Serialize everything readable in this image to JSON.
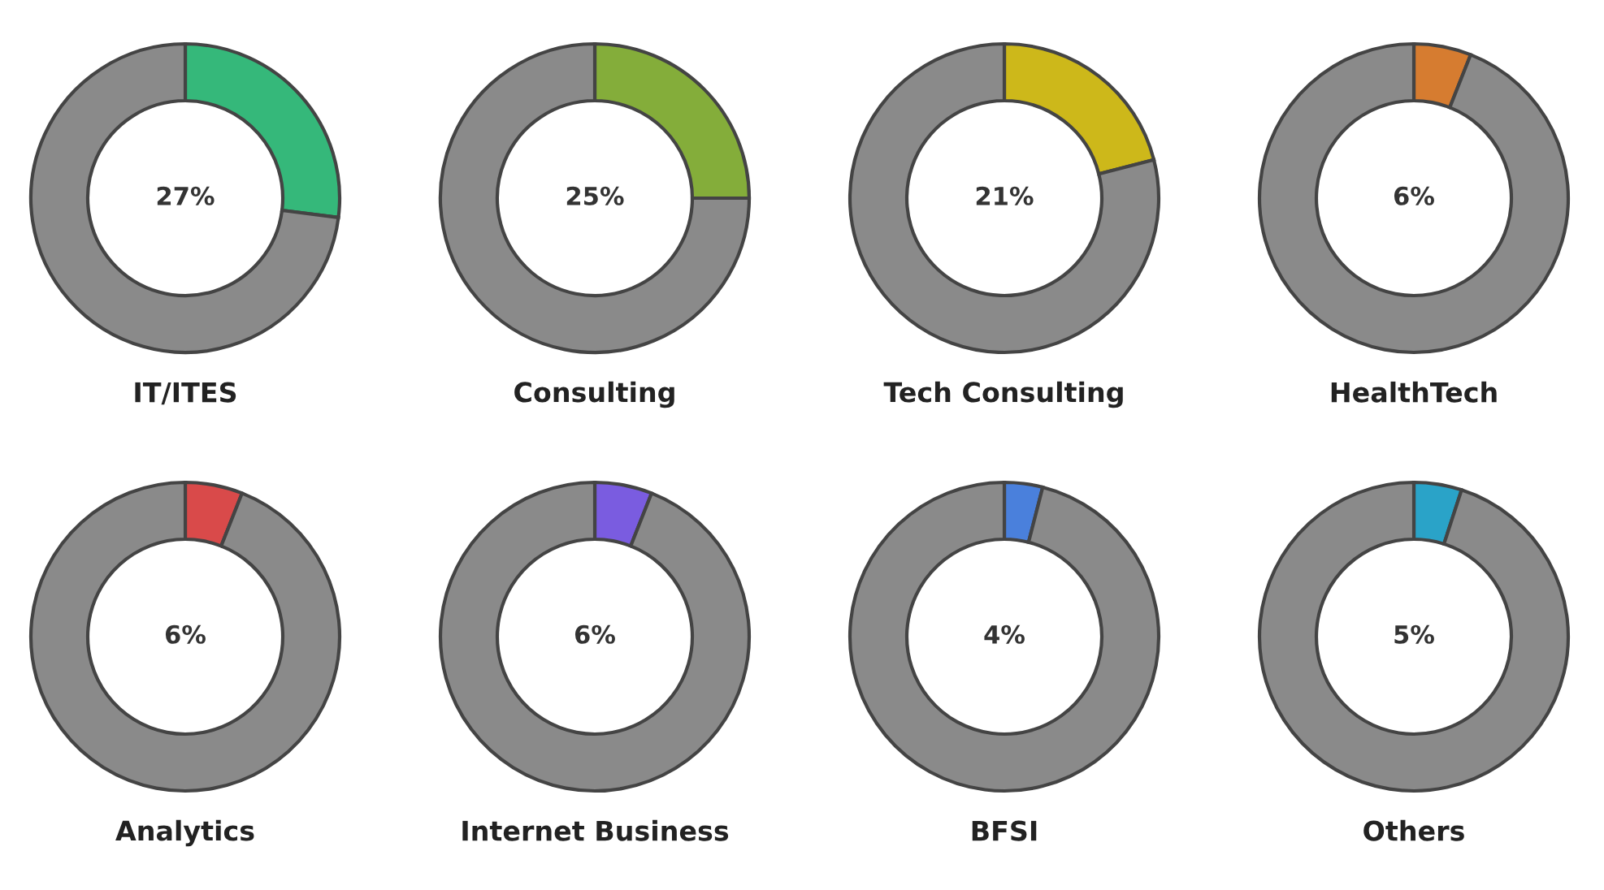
{
  "chart_data": [
    {
      "type": "donut",
      "title": "IT/ITES",
      "categories": [
        null,
        null
      ],
      "values": [
        27,
        73
      ],
      "colors": [
        "#35b87a",
        "#8a8a8a"
      ],
      "value_labels": [
        "27%",
        null
      ]
    },
    {
      "type": "donut",
      "title": "Consulting",
      "categories": [
        null,
        null
      ],
      "values": [
        25,
        75
      ],
      "colors": [
        "#84ad3a",
        "#8a8a8a"
      ],
      "value_labels": [
        "25%",
        null
      ]
    },
    {
      "type": "donut",
      "title": "Tech Consulting",
      "categories": [
        null,
        null
      ],
      "values": [
        21,
        79
      ],
      "colors": [
        "#cdb81a",
        "#8a8a8a"
      ],
      "value_labels": [
        "21%",
        null
      ]
    },
    {
      "type": "donut",
      "title": "HealthTech",
      "categories": [
        null,
        null
      ],
      "values": [
        6,
        94
      ],
      "colors": [
        "#d67c30",
        "#8a8a8a"
      ],
      "value_labels": [
        "6%",
        null
      ]
    },
    {
      "type": "donut",
      "title": "Analytics",
      "categories": [
        null,
        null
      ],
      "values": [
        6,
        94
      ],
      "colors": [
        "#d94a4a",
        "#8a8a8a"
      ],
      "value_labels": [
        "6%",
        null
      ]
    },
    {
      "type": "donut",
      "title": "Internet Business",
      "categories": [
        null,
        null
      ],
      "values": [
        6,
        94
      ],
      "colors": [
        "#7a5ce0",
        "#8a8a8a"
      ],
      "value_labels": [
        "6%",
        null
      ]
    },
    {
      "type": "donut",
      "title": "BFSI",
      "categories": [
        null,
        null
      ],
      "values": [
        4,
        96
      ],
      "colors": [
        "#4a80dc",
        "#8a8a8a"
      ],
      "value_labels": [
        "4%",
        null
      ]
    },
    {
      "type": "donut",
      "title": "Others",
      "categories": [
        null,
        null
      ],
      "values": [
        5,
        95
      ],
      "colors": [
        "#2aa3c8",
        "#8a8a8a"
      ],
      "value_labels": [
        "5%",
        null
      ]
    }
  ]
}
